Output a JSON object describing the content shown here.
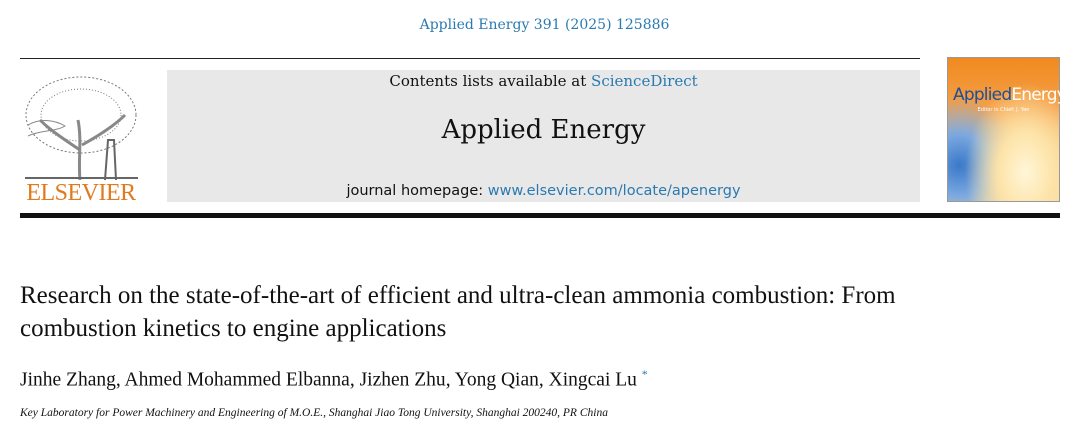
{
  "header": {
    "citation": "Applied Energy 391 (2025) 125886",
    "contents_prefix": "Contents lists available at ",
    "contents_link": "ScienceDirect",
    "journal_title": "Applied Energy",
    "homepage_prefix": "journal homepage: ",
    "homepage_link": "www.elsevier.com/locate/apenergy",
    "publisher_logo": "ELSEVIER",
    "cover": {
      "title_a": "Applied",
      "title_b": "Energy",
      "editor": "Editor in Chief: J. Yan"
    }
  },
  "article": {
    "title": "Research on the state-of-the-art of efficient and ultra-clean ammonia combustion: From combustion kinetics to engine applications",
    "authors": [
      "Jinhe Zhang",
      "Ahmed Mohammed Elbanna",
      "Jizhen Zhu",
      "Yong Qian",
      "Xingcai Lu"
    ],
    "corresponding_mark": "*",
    "affiliation": "Key Laboratory for Power Machinery and Engineering of M.O.E., Shanghai Jiao Tong University, Shanghai 200240, PR China"
  },
  "colors": {
    "link": "#2a7ab0",
    "elsevier_orange": "#e07a1c",
    "header_gray": "#e8e8e8"
  }
}
